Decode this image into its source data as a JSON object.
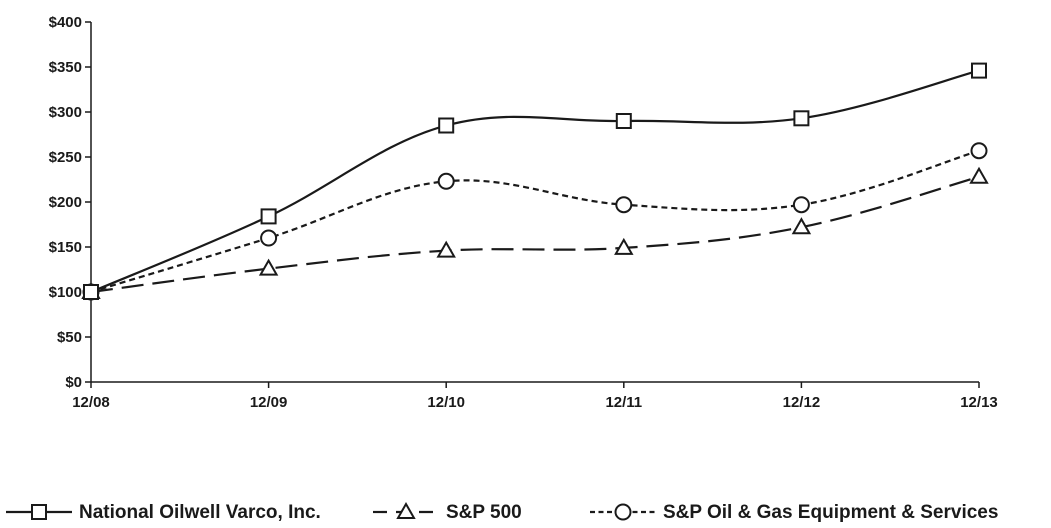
{
  "chart_data": {
    "type": "line",
    "categories": [
      "12/08",
      "12/09",
      "12/10",
      "12/11",
      "12/12",
      "12/13"
    ],
    "y_ticks": [
      "$0",
      "$50",
      "$100",
      "$150",
      "$200",
      "$250",
      "$300",
      "$350",
      "$400"
    ],
    "ylim": [
      0,
      400
    ],
    "grid": false,
    "legend_position": "bottom",
    "series": [
      {
        "name": "National Oilwell Varco, Inc.",
        "values": [
          100,
          184,
          285,
          290,
          293,
          346
        ],
        "marker": "square",
        "dash": "solid",
        "color": "#1a1a1a"
      },
      {
        "name": "S&P 500",
        "values": [
          100,
          126,
          146,
          149,
          172,
          228
        ],
        "marker": "triangle",
        "dash": "long-dash",
        "color": "#1a1a1a"
      },
      {
        "name": "S&P Oil & Gas Equipment & Services",
        "values": [
          100,
          160,
          223,
          197,
          197,
          257
        ],
        "marker": "circle",
        "dash": "short-dash",
        "color": "#1a1a1a"
      }
    ]
  }
}
